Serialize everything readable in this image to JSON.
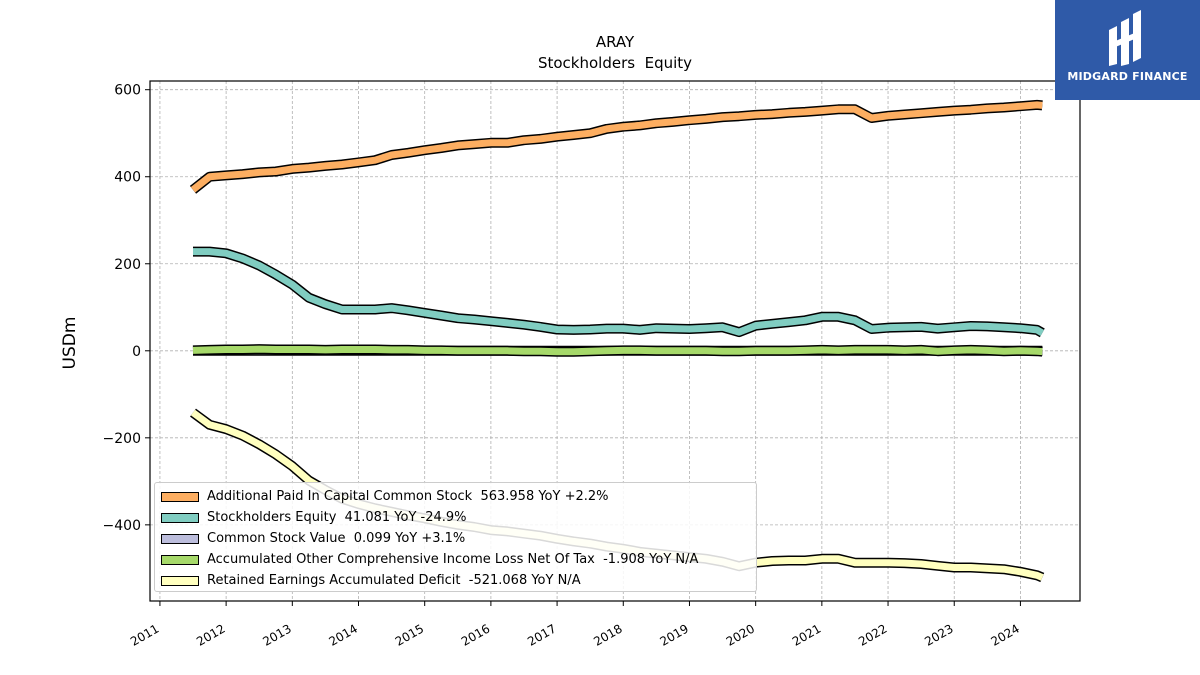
{
  "chart_data": {
    "type": "line",
    "title": "ARAY",
    "subtitle": "Stockholders  Equity",
    "ylabel": "USDm",
    "xlabel": "",
    "xlim": [
      2010.85,
      2024.9
    ],
    "ylim": [
      -575,
      620
    ],
    "yticks": [
      600,
      400,
      200,
      0,
      -200,
      -400
    ],
    "ytick_labels": [
      "600",
      "400",
      "200",
      "0",
      "−200",
      "−400"
    ],
    "xticks": [
      2011,
      2012,
      2013,
      2014,
      2015,
      2016,
      2017,
      2018,
      2019,
      2020,
      2021,
      2022,
      2023,
      2024
    ],
    "xtick_labels": [
      "2011",
      "2012",
      "2013",
      "2014",
      "2015",
      "2016",
      "2017",
      "2018",
      "2019",
      "2020",
      "2021",
      "2022",
      "2023",
      "2024"
    ],
    "grid": true,
    "legend_position": "lower-left",
    "x": [
      2011.5,
      2011.75,
      2012.0,
      2012.25,
      2012.5,
      2012.75,
      2013.0,
      2013.25,
      2013.5,
      2013.75,
      2014.0,
      2014.25,
      2014.5,
      2014.75,
      2015.0,
      2015.25,
      2015.5,
      2015.75,
      2016.0,
      2016.25,
      2016.5,
      2016.75,
      2017.0,
      2017.25,
      2017.5,
      2017.75,
      2018.0,
      2018.25,
      2018.5,
      2018.75,
      2019.0,
      2019.25,
      2019.5,
      2019.75,
      2020.0,
      2020.25,
      2020.5,
      2020.75,
      2021.0,
      2021.25,
      2021.5,
      2021.75,
      2022.0,
      2022.25,
      2022.5,
      2022.75,
      2023.0,
      2023.25,
      2023.5,
      2023.75,
      2024.0,
      2024.25,
      2024.33
    ],
    "series": [
      {
        "name": "Additional Paid In Capital Common Stock",
        "legend_label": "Additional Paid In Capital Common Stock  563.958 YoY +2.2%",
        "color": "#fdae61",
        "values": [
          370,
          400,
          403,
          406,
          410,
          412,
          418,
          421,
          425,
          428,
          433,
          438,
          450,
          455,
          461,
          466,
          472,
          475,
          478,
          478,
          484,
          487,
          492,
          496,
          500,
          510,
          515,
          518,
          523,
          526,
          530,
          533,
          537,
          539,
          542,
          544,
          547,
          549,
          552,
          555,
          555,
          535,
          540,
          543,
          546,
          549,
          552,
          554,
          557,
          559,
          562,
          565,
          563.958
        ]
      },
      {
        "name": "Stockholders Equity",
        "legend_label": "Stockholders Equity  41.081 YoY -24.9%",
        "color": "#80cdc1",
        "values": [
          228,
          228,
          224,
          212,
          196,
          175,
          152,
          122,
          107,
          95,
          95,
          95,
          98,
          93,
          87,
          81,
          75,
          72,
          68,
          64,
          60,
          55,
          49,
          48,
          49,
          51,
          51,
          48,
          52,
          51,
          50,
          52,
          54,
          43,
          58,
          62,
          66,
          70,
          78,
          78,
          70,
          50,
          53,
          54,
          55,
          51,
          54,
          57,
          56,
          54,
          52,
          48,
          41.081
        ]
      },
      {
        "name": "Common Stock Value",
        "legend_label": "Common Stock Value  0.099 YoY +3.1%",
        "color": "#bcbddc",
        "values": [
          0.08,
          0.08,
          0.08,
          0.08,
          0.08,
          0.08,
          0.085,
          0.085,
          0.085,
          0.085,
          0.085,
          0.085,
          0.09,
          0.09,
          0.09,
          0.09,
          0.09,
          0.09,
          0.09,
          0.09,
          0.09,
          0.09,
          0.09,
          0.09,
          0.09,
          0.09,
          0.09,
          0.09,
          0.09,
          0.09,
          0.095,
          0.095,
          0.095,
          0.095,
          0.095,
          0.095,
          0.095,
          0.095,
          0.095,
          0.096,
          0.096,
          0.096,
          0.096,
          0.096,
          0.096,
          0.096,
          0.096,
          0.097,
          0.097,
          0.097,
          0.098,
          0.098,
          0.099
        ]
      },
      {
        "name": "Accumulated Other Comprehensive Income Loss Net Of Tax",
        "legend_label": "Accumulated Other Comprehensive Income Loss Net Of Tax  -1.908 YoY N/A",
        "color": "#a6d96a",
        "values": [
          1,
          2,
          3,
          3,
          4,
          3,
          3,
          3,
          2,
          3,
          3,
          3,
          2,
          2,
          1,
          1,
          0,
          0,
          0,
          0,
          -1,
          -1,
          -2,
          -2,
          -1,
          0,
          1,
          1,
          0,
          0,
          0,
          0,
          -1,
          -1,
          0,
          0,
          0,
          1,
          2,
          1,
          2,
          2,
          2,
          1,
          2,
          -1,
          1,
          2,
          1,
          -1,
          0,
          -1,
          -1.908
        ]
      },
      {
        "name": "Retained Earnings Accumulated Deficit",
        "legend_label": "Retained Earnings Accumulated Deficit  -521.068 YoY N/A",
        "color": "#ffffbf",
        "values": [
          -142,
          -170,
          -180,
          -195,
          -215,
          -238,
          -265,
          -298,
          -320,
          -340,
          -352,
          -362,
          -370,
          -378,
          -385,
          -393,
          -400,
          -405,
          -412,
          -415,
          -420,
          -425,
          -432,
          -438,
          -443,
          -450,
          -455,
          -462,
          -466,
          -470,
          -474,
          -478,
          -485,
          -495,
          -487,
          -483,
          -482,
          -482,
          -478,
          -478,
          -487,
          -487,
          -487,
          -488,
          -490,
          -494,
          -498,
          -498,
          -500,
          -502,
          -508,
          -516,
          -521.068
        ]
      }
    ]
  },
  "logo": {
    "text": "MIDGARD FINANCE",
    "icon": "midgard-logo-icon",
    "background": "#2f5aa8"
  }
}
